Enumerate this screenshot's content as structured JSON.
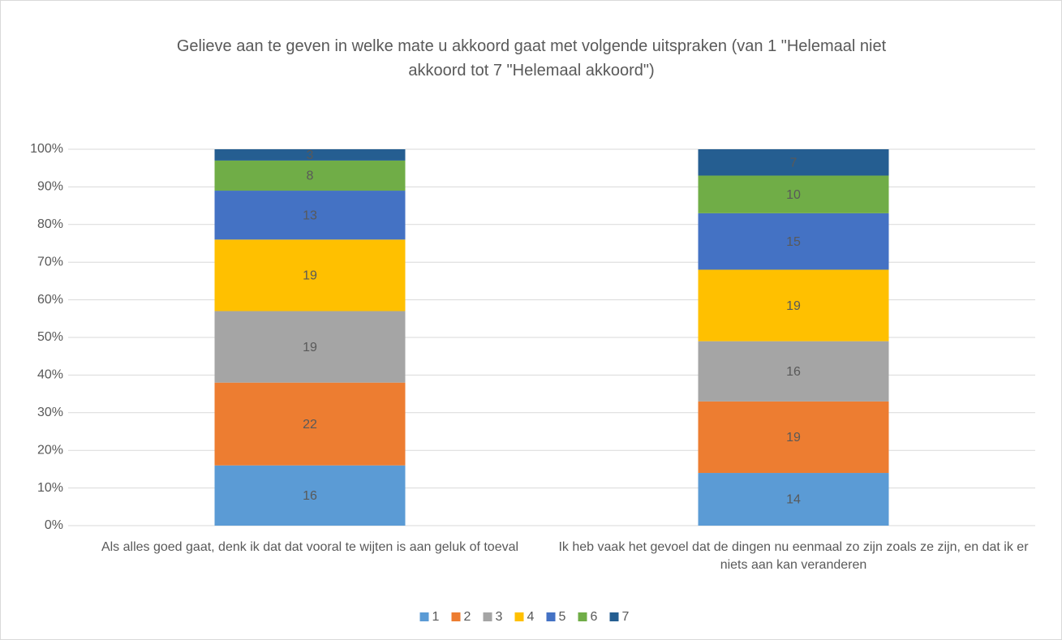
{
  "chart_data": {
    "type": "stacked_bar",
    "title": "Gelieve aan te geven in welke mate u akkoord gaat met volgende uitspraken (van 1 \"Helemaal niet akkoord tot 7 \"Helemaal akkoord\")",
    "categories": [
      "Als alles goed gaat, denk ik dat dat vooral te wijten is aan geluk of toeval",
      "Ik heb vaak het gevoel dat de dingen nu eenmaal zo zijn zoals ze zijn, en dat ik er niets aan kan veranderen"
    ],
    "series": [
      {
        "name": "1",
        "color": "#5b9bd5",
        "values": [
          16,
          14
        ]
      },
      {
        "name": "2",
        "color": "#ed7d31",
        "values": [
          22,
          19
        ]
      },
      {
        "name": "3",
        "color": "#a5a5a5",
        "values": [
          19,
          16
        ]
      },
      {
        "name": "4",
        "color": "#ffc000",
        "values": [
          19,
          19
        ]
      },
      {
        "name": "5",
        "color": "#4472c4",
        "values": [
          13,
          15
        ]
      },
      {
        "name": "6",
        "color": "#70ad47",
        "values": [
          8,
          10
        ]
      },
      {
        "name": "7",
        "color": "#255e91",
        "values": [
          3,
          7
        ]
      }
    ],
    "ylim": [
      0,
      100
    ],
    "yticks": [
      {
        "value": 0,
        "label": "0%"
      },
      {
        "value": 10,
        "label": "10%"
      },
      {
        "value": 20,
        "label": "20%"
      },
      {
        "value": 30,
        "label": "30%"
      },
      {
        "value": 40,
        "label": "40%"
      },
      {
        "value": 50,
        "label": "50%"
      },
      {
        "value": 60,
        "label": "60%"
      },
      {
        "value": 70,
        "label": "70%"
      },
      {
        "value": 80,
        "label": "80%"
      },
      {
        "value": 90,
        "label": "90%"
      },
      {
        "value": 100,
        "label": "100%"
      }
    ],
    "grid": true,
    "legend": "bottom"
  }
}
